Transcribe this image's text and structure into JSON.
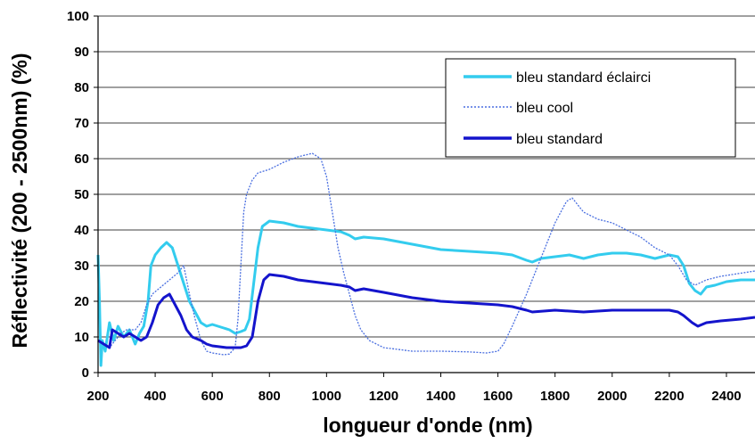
{
  "chart_data": {
    "type": "line",
    "title": "",
    "xlabel": "longueur d'onde (nm)",
    "ylabel": "Réflectivité (200 - 2500nm) (%)",
    "xlim": [
      200,
      2500
    ],
    "ylim": [
      0,
      100
    ],
    "x_ticks": [
      200,
      400,
      600,
      800,
      1000,
      1200,
      1400,
      1600,
      1800,
      2000,
      2200,
      2400
    ],
    "y_ticks": [
      0,
      10,
      20,
      30,
      40,
      50,
      60,
      70,
      80,
      90,
      100
    ],
    "grid": "horizontal",
    "legend_position": "top-right",
    "series": [
      {
        "name": "bleu standard éclairci",
        "color": "#33CCEE",
        "style": "solid-thick",
        "points": [
          [
            200,
            33
          ],
          [
            205,
            20
          ],
          [
            210,
            2
          ],
          [
            215,
            9
          ],
          [
            225,
            6
          ],
          [
            240,
            14
          ],
          [
            255,
            9
          ],
          [
            270,
            13
          ],
          [
            290,
            10
          ],
          [
            310,
            12
          ],
          [
            330,
            8
          ],
          [
            345,
            11
          ],
          [
            360,
            13
          ],
          [
            375,
            20
          ],
          [
            385,
            30
          ],
          [
            400,
            33
          ],
          [
            420,
            35
          ],
          [
            440,
            36.5
          ],
          [
            460,
            35
          ],
          [
            480,
            30
          ],
          [
            500,
            25
          ],
          [
            520,
            20
          ],
          [
            540,
            17
          ],
          [
            560,
            14
          ],
          [
            580,
            13
          ],
          [
            600,
            13.5
          ],
          [
            620,
            13
          ],
          [
            640,
            12.5
          ],
          [
            660,
            12
          ],
          [
            680,
            11
          ],
          [
            700,
            11.5
          ],
          [
            715,
            12
          ],
          [
            730,
            15
          ],
          [
            745,
            25
          ],
          [
            760,
            35
          ],
          [
            775,
            41
          ],
          [
            800,
            42.5
          ],
          [
            850,
            42
          ],
          [
            900,
            41
          ],
          [
            950,
            40.5
          ],
          [
            1000,
            40
          ],
          [
            1050,
            39.5
          ],
          [
            1080,
            38.5
          ],
          [
            1100,
            37.5
          ],
          [
            1130,
            38
          ],
          [
            1200,
            37.5
          ],
          [
            1300,
            36
          ],
          [
            1400,
            34.5
          ],
          [
            1500,
            34
          ],
          [
            1600,
            33.5
          ],
          [
            1650,
            33
          ],
          [
            1700,
            31.5
          ],
          [
            1720,
            31
          ],
          [
            1750,
            32
          ],
          [
            1800,
            32.5
          ],
          [
            1850,
            33
          ],
          [
            1900,
            32
          ],
          [
            1950,
            33
          ],
          [
            2000,
            33.5
          ],
          [
            2050,
            33.5
          ],
          [
            2100,
            33
          ],
          [
            2150,
            32
          ],
          [
            2200,
            33
          ],
          [
            2230,
            32.5
          ],
          [
            2250,
            30
          ],
          [
            2270,
            25
          ],
          [
            2290,
            23
          ],
          [
            2310,
            22
          ],
          [
            2330,
            24
          ],
          [
            2360,
            24.5
          ],
          [
            2400,
            25.5
          ],
          [
            2450,
            26
          ],
          [
            2500,
            26
          ]
        ]
      },
      {
        "name": "bleu cool",
        "color": "#4A6FE0",
        "style": "dotted-thin",
        "points": [
          [
            200,
            9
          ],
          [
            220,
            8
          ],
          [
            240,
            7
          ],
          [
            260,
            9
          ],
          [
            280,
            11
          ],
          [
            300,
            12
          ],
          [
            330,
            12
          ],
          [
            350,
            14
          ],
          [
            370,
            19
          ],
          [
            390,
            22
          ],
          [
            420,
            24
          ],
          [
            450,
            26
          ],
          [
            480,
            28
          ],
          [
            500,
            30
          ],
          [
            520,
            22
          ],
          [
            540,
            15
          ],
          [
            560,
            9
          ],
          [
            580,
            6
          ],
          [
            600,
            5.5
          ],
          [
            640,
            5
          ],
          [
            660,
            5.2
          ],
          [
            680,
            7
          ],
          [
            690,
            15
          ],
          [
            700,
            30
          ],
          [
            710,
            45
          ],
          [
            720,
            50
          ],
          [
            740,
            54
          ],
          [
            760,
            56
          ],
          [
            800,
            57
          ],
          [
            850,
            59
          ],
          [
            900,
            60.5
          ],
          [
            950,
            61.5
          ],
          [
            980,
            60
          ],
          [
            1000,
            55
          ],
          [
            1020,
            45
          ],
          [
            1040,
            35
          ],
          [
            1060,
            28
          ],
          [
            1080,
            22
          ],
          [
            1100,
            16
          ],
          [
            1120,
            12
          ],
          [
            1150,
            9
          ],
          [
            1200,
            7
          ],
          [
            1300,
            6
          ],
          [
            1400,
            6
          ],
          [
            1500,
            5.8
          ],
          [
            1560,
            5.5
          ],
          [
            1600,
            6
          ],
          [
            1620,
            8
          ],
          [
            1650,
            13
          ],
          [
            1700,
            22
          ],
          [
            1750,
            32
          ],
          [
            1800,
            42
          ],
          [
            1840,
            48
          ],
          [
            1860,
            49
          ],
          [
            1880,
            47
          ],
          [
            1900,
            45
          ],
          [
            1950,
            43
          ],
          [
            2000,
            42
          ],
          [
            2050,
            40
          ],
          [
            2100,
            38
          ],
          [
            2150,
            35
          ],
          [
            2200,
            33
          ],
          [
            2230,
            30
          ],
          [
            2260,
            26
          ],
          [
            2290,
            24.5
          ],
          [
            2330,
            26
          ],
          [
            2380,
            27
          ],
          [
            2420,
            27.5
          ],
          [
            2460,
            28
          ],
          [
            2500,
            28.5
          ]
        ]
      },
      {
        "name": "bleu standard",
        "color": "#1414CC",
        "style": "solid-thick",
        "points": [
          [
            200,
            9
          ],
          [
            220,
            8
          ],
          [
            240,
            7
          ],
          [
            250,
            12
          ],
          [
            270,
            11
          ],
          [
            290,
            10
          ],
          [
            310,
            11
          ],
          [
            330,
            10
          ],
          [
            350,
            9
          ],
          [
            370,
            10
          ],
          [
            390,
            14
          ],
          [
            410,
            19
          ],
          [
            430,
            21
          ],
          [
            450,
            22
          ],
          [
            470,
            19
          ],
          [
            490,
            16
          ],
          [
            510,
            12
          ],
          [
            530,
            10
          ],
          [
            560,
            9
          ],
          [
            580,
            8
          ],
          [
            600,
            7.5
          ],
          [
            650,
            7
          ],
          [
            700,
            7
          ],
          [
            720,
            7.5
          ],
          [
            740,
            10
          ],
          [
            760,
            20
          ],
          [
            780,
            26
          ],
          [
            800,
            27.5
          ],
          [
            850,
            27
          ],
          [
            900,
            26
          ],
          [
            950,
            25.5
          ],
          [
            1000,
            25
          ],
          [
            1050,
            24.5
          ],
          [
            1080,
            24
          ],
          [
            1100,
            23
          ],
          [
            1130,
            23.5
          ],
          [
            1200,
            22.5
          ],
          [
            1300,
            21
          ],
          [
            1400,
            20
          ],
          [
            1500,
            19.5
          ],
          [
            1600,
            19
          ],
          [
            1650,
            18.5
          ],
          [
            1700,
            17.5
          ],
          [
            1720,
            17
          ],
          [
            1800,
            17.5
          ],
          [
            1900,
            17
          ],
          [
            2000,
            17.5
          ],
          [
            2100,
            17.5
          ],
          [
            2200,
            17.5
          ],
          [
            2230,
            17
          ],
          [
            2250,
            16
          ],
          [
            2280,
            14
          ],
          [
            2300,
            13
          ],
          [
            2330,
            14
          ],
          [
            2380,
            14.5
          ],
          [
            2450,
            15
          ],
          [
            2500,
            15.5
          ]
        ]
      }
    ]
  }
}
